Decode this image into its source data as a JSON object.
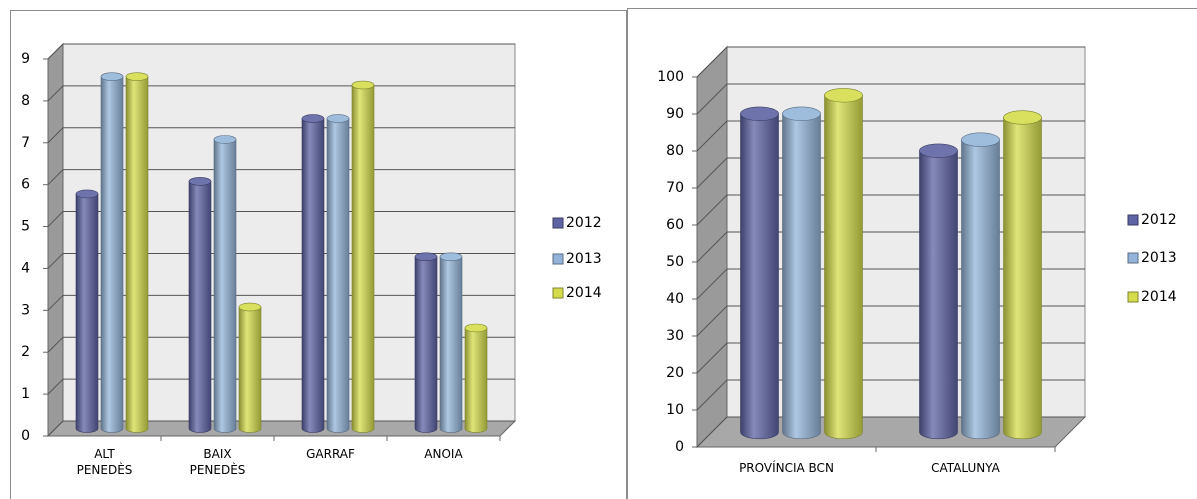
{
  "chart_data": [
    {
      "type": "bar3d",
      "categories": [
        "ALT PENEDÈS",
        "BAIX PENEDÈS",
        "GARRAF",
        "ANOIA"
      ],
      "series": [
        {
          "name": "2012",
          "color": "#5e63a3",
          "values": [
            5.6,
            5.9,
            7.4,
            4.1
          ]
        },
        {
          "name": "2013",
          "color": "#93b4d8",
          "values": [
            8.4,
            6.9,
            7.4,
            4.1
          ]
        },
        {
          "name": "2014",
          "color": "#d4dc4c",
          "values": [
            8.4,
            2.9,
            8.2,
            2.4
          ]
        }
      ],
      "ylim": [
        0,
        9
      ],
      "yticks": [
        0,
        1,
        2,
        3,
        4,
        5,
        6,
        7,
        8,
        9
      ],
      "grid": true,
      "legend": "right"
    },
    {
      "type": "bar3d",
      "categories": [
        "PROVÍNCIA BCN",
        "CATALUNYA"
      ],
      "series": [
        {
          "name": "2012",
          "color": "#5e63a3",
          "values": [
            86,
            76
          ]
        },
        {
          "name": "2013",
          "color": "#93b4d8",
          "values": [
            86,
            79
          ]
        },
        {
          "name": "2014",
          "color": "#d4dc4c",
          "values": [
            91,
            85
          ]
        }
      ],
      "ylim": [
        0,
        100
      ],
      "yticks": [
        0,
        10,
        20,
        30,
        40,
        50,
        60,
        70,
        80,
        90,
        100
      ],
      "grid": true,
      "legend": "right"
    }
  ]
}
